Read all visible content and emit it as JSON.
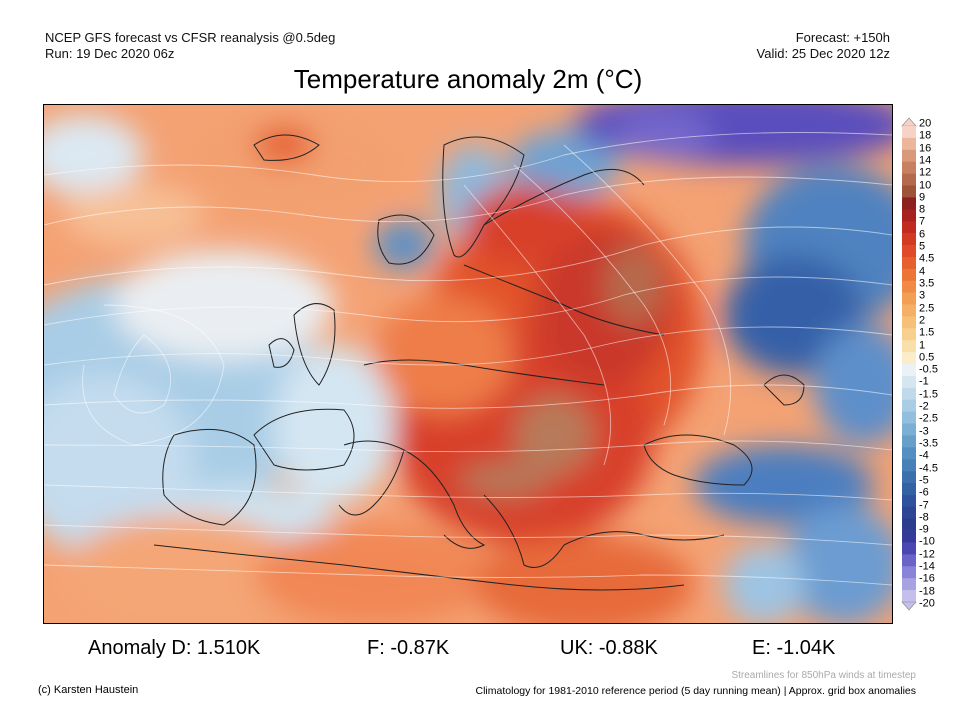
{
  "header": {
    "model_line": "NCEP GFS forecast vs CFSR reanalysis @0.5deg",
    "run_line": "Run: 19 Dec 2020 06z",
    "forecast_line": "Forecast: +150h",
    "valid_line": "Valid: 25 Dec 2020 12z"
  },
  "title": "Temperature anomaly 2m (°C)",
  "colorbar": {
    "labels": [
      "20",
      "18",
      "16",
      "14",
      "12",
      "10",
      "9",
      "8",
      "7",
      "6",
      "5",
      "4.5",
      "4",
      "3.5",
      "3",
      "2.5",
      "2",
      "1.5",
      "1",
      "0.5",
      "-0.5",
      "-1",
      "-1.5",
      "-2",
      "-2.5",
      "-3",
      "-3.5",
      "-4",
      "-4.5",
      "-5",
      "-6",
      "-7",
      "-8",
      "-9",
      "-10",
      "-12",
      "-14",
      "-16",
      "-18",
      "-20"
    ],
    "colors": [
      "#f6d3c6",
      "#ecb69d",
      "#d99a7b",
      "#c78060",
      "#b46a4c",
      "#9e5439",
      "#8d2121",
      "#a82020",
      "#c02a20",
      "#d33a22",
      "#e04a28",
      "#e6602e",
      "#ec7436",
      "#f08a44",
      "#f39e55",
      "#f5b066",
      "#f6c078",
      "#f8d08e",
      "#f9dfaa",
      "#fbecca",
      "#ebf2f7",
      "#d6e6f1",
      "#c0daeb",
      "#a9cde5",
      "#92bfdd",
      "#7bb0d4",
      "#669fca",
      "#548fc1",
      "#4781b8",
      "#3b70ac",
      "#3461a4",
      "#2f529c",
      "#2c4693",
      "#2a3c8c",
      "#353a9a",
      "#4a47b2",
      "#6a63c8",
      "#8a84d8",
      "#a9a2e2",
      "#c5bfec"
    ]
  },
  "map_labels": [],
  "anomalies": {
    "d": "Anomaly D: 1.510K",
    "f": "F: -0.87K",
    "uk": "UK: -0.88K",
    "e": "E: -1.04K"
  },
  "footer": {
    "streamlines_note": "Streamlines for 850hPa winds at timestep",
    "copyright": "(c) Karsten Haustein",
    "climatology": "Climatology for 1981-2010 reference period (5 day running mean) | Approx. grid box anomalies"
  }
}
